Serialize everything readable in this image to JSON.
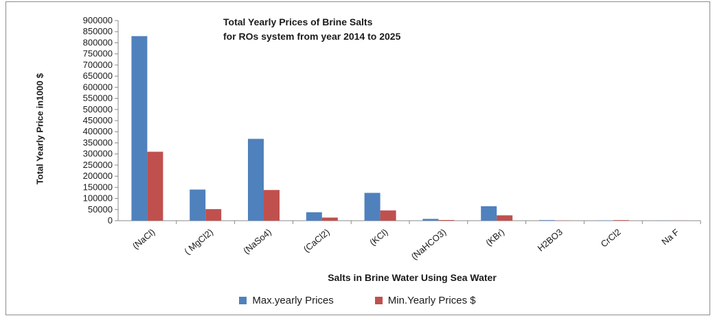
{
  "chart_data": {
    "type": "bar",
    "title": "Total Yearly Prices of Brine Salts",
    "subtitle": "for ROs system from year 2014 to 2025",
    "xlabel": "Salts  in Brine Water Using Sea Water",
    "ylabel": "Total Yearly Price in1000 $",
    "ylim": [
      0,
      900000
    ],
    "yticks": [
      "0",
      "50000",
      "100000",
      "150000",
      "200000",
      "250000",
      "300000",
      "350000",
      "400000",
      "450000",
      "500000",
      "550000",
      "600000",
      "650000",
      "700000",
      "750000",
      "800000",
      "850000",
      "900000"
    ],
    "categories": [
      "(NaCl)",
      "( MgCl2)",
      "(NaSo4)",
      "(CaCl2)",
      "(KCl)",
      "(NaHCO3)",
      "(KBr)",
      "H2BO3",
      "CrCl2",
      "Na F"
    ],
    "series": [
      {
        "name": "Max.yearly Prices",
        "color": "#4f81bd",
        "values": [
          830000,
          140000,
          368000,
          38000,
          125000,
          8000,
          65000,
          2500,
          1500,
          500
        ]
      },
      {
        "name": "Min.Yearly Prices $",
        "color": "#c0504d",
        "values": [
          310000,
          52000,
          138000,
          14000,
          46000,
          3000,
          24000,
          1000,
          2500,
          200
        ]
      }
    ],
    "grid": false,
    "legend_position": "bottom"
  }
}
